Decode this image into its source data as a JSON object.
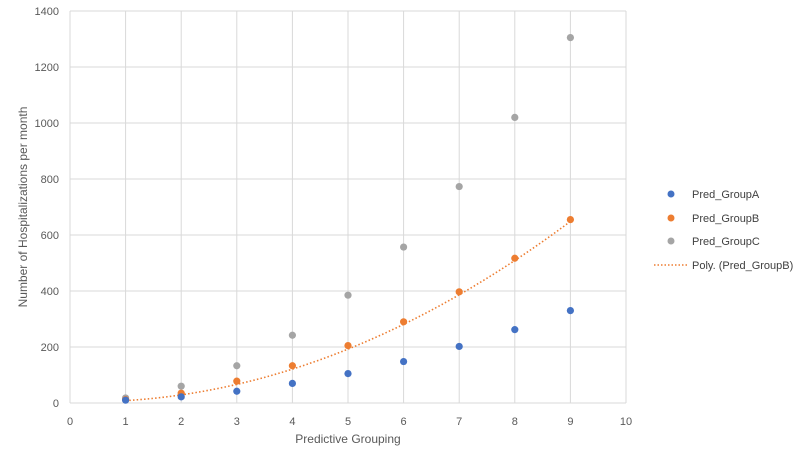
{
  "chart_data": {
    "type": "scatter",
    "title": "",
    "xlabel": "Predictive Grouping",
    "ylabel": "Number of Hospitalizations per month",
    "xlim": [
      0,
      10
    ],
    "ylim": [
      0,
      1400
    ],
    "x_ticks": [
      "0",
      "1",
      "2",
      "3",
      "4",
      "5",
      "6",
      "7",
      "8",
      "9",
      "10"
    ],
    "y_ticks": [
      "0",
      "200",
      "400",
      "600",
      "800",
      "1000",
      "1200",
      "1400"
    ],
    "grid": true,
    "legend_position": "right",
    "x": [
      1,
      2,
      3,
      4,
      5,
      6,
      7,
      8,
      9
    ],
    "series": [
      {
        "name": "Pred_GroupA",
        "color": "#4472C4",
        "values": [
          10,
          22,
          42,
          70,
          105,
          148,
          202,
          262,
          330
        ]
      },
      {
        "name": "Pred_GroupB",
        "color": "#ED7D31",
        "values": [
          12,
          35,
          78,
          133,
          205,
          290,
          397,
          517,
          655
        ]
      },
      {
        "name": "Pred_GroupC",
        "color": "#A5A5A5",
        "values": [
          18,
          60,
          133,
          242,
          385,
          557,
          773,
          1020,
          1305
        ]
      }
    ],
    "trendline": {
      "name": "Poly. (Pred_GroupB)",
      "color": "#ED7D31",
      "kind": "polynomial",
      "coefficients": [
        5,
        -5,
        8.5
      ]
    }
  }
}
